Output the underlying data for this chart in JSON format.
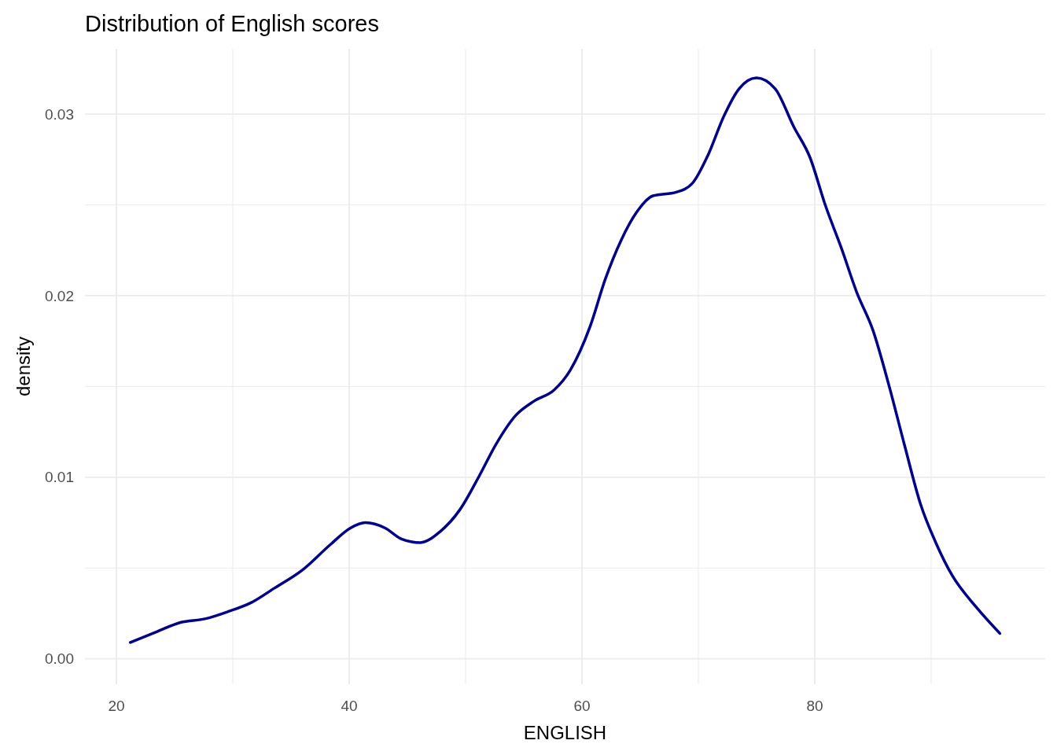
{
  "chart_data": {
    "type": "line",
    "title": "Distribution of English scores",
    "xlabel": "ENGLISH",
    "ylabel": "density",
    "xlim": [
      17.3,
      99.8
    ],
    "ylim": [
      -0.0014,
      0.0336
    ],
    "xticks": [
      20,
      {
        "value": 30,
        "label": null
      },
      40,
      {
        "value": 50,
        "label": null
      },
      60,
      {
        "value": 70,
        "label": null
      },
      80,
      {
        "value": 90,
        "label": null
      }
    ],
    "yticks": [
      {
        "value": 0,
        "label": "0.00"
      },
      {
        "value": 0.005,
        "label": null
      },
      0.01,
      {
        "value": 0.015,
        "label": null
      },
      0.02,
      {
        "value": 0.025,
        "label": null
      },
      0.03
    ],
    "grid": true,
    "line_style": "solid",
    "marker": "none",
    "series": [
      {
        "color": "#00008b",
        "x": [
          21.2,
          23.5,
          25.5,
          27.6,
          29.6,
          31.6,
          33.6,
          36.0,
          38.4,
          40.1,
          41.4,
          43.1,
          44.5,
          46.1,
          47.8,
          49.5,
          51.2,
          52.6,
          54.3,
          55.9,
          57.6,
          59.0,
          60.7,
          62.0,
          63.4,
          64.7,
          66.1,
          68.1,
          69.5,
          70.8,
          72.2,
          73.5,
          75.0,
          76.6,
          78.2,
          79.6,
          80.9,
          82.3,
          83.6,
          85.0,
          86.4,
          87.7,
          89.1,
          90.4,
          91.8,
          93.8,
          95.9
        ],
        "values": [
          0.0009,
          0.0015,
          0.002,
          0.0022,
          0.0026,
          0.0031,
          0.0039,
          0.0049,
          0.0063,
          0.0072,
          0.0075,
          0.0072,
          0.0066,
          0.0064,
          0.007,
          0.0082,
          0.0101,
          0.0118,
          0.0134,
          0.0142,
          0.0148,
          0.0159,
          0.0183,
          0.0209,
          0.0231,
          0.0246,
          0.0255,
          0.0257,
          0.0262,
          0.0277,
          0.0299,
          0.0314,
          0.032,
          0.0314,
          0.0293,
          0.0276,
          0.025,
          0.0226,
          0.0202,
          0.0181,
          0.015,
          0.0118,
          0.0085,
          0.0064,
          0.0046,
          0.0029,
          0.0014
        ]
      }
    ]
  }
}
